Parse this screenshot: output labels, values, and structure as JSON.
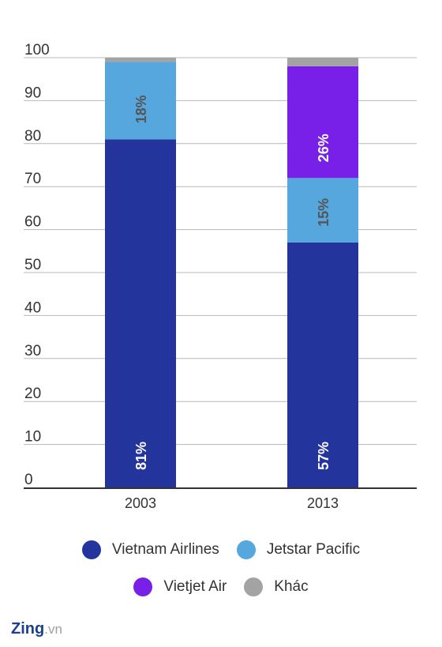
{
  "chart_data": {
    "type": "bar",
    "stacked": true,
    "categories": [
      "2003",
      "2013"
    ],
    "series": [
      {
        "name": "Vietnam Airlines",
        "color": "#23349c",
        "values": [
          81,
          57
        ],
        "labels": [
          "81%",
          "57%"
        ],
        "label_color": "#ffffff"
      },
      {
        "name": "Jetstar Pacific",
        "color": "#55a7de",
        "values": [
          18,
          15
        ],
        "labels": [
          "18%",
          "15%"
        ],
        "label_color": "#555555"
      },
      {
        "name": "Vietjet Air",
        "color": "#7820e8",
        "values": [
          0,
          26
        ],
        "labels": [
          "",
          "26%"
        ],
        "label_color": "#ffffff"
      },
      {
        "name": "Khác",
        "color": "#a3a3a3",
        "values": [
          1,
          2
        ],
        "labels": [
          "",
          ""
        ],
        "label_color": "#ffffff"
      }
    ],
    "ylim": [
      0,
      100
    ],
    "yticks": [
      "0",
      "10",
      "20",
      "30",
      "40",
      "50",
      "60",
      "70",
      "80",
      "90",
      "100"
    ],
    "grid": true,
    "legend_position": "bottom"
  },
  "logo": {
    "brand": "Zing",
    "suffix": ".vn"
  }
}
